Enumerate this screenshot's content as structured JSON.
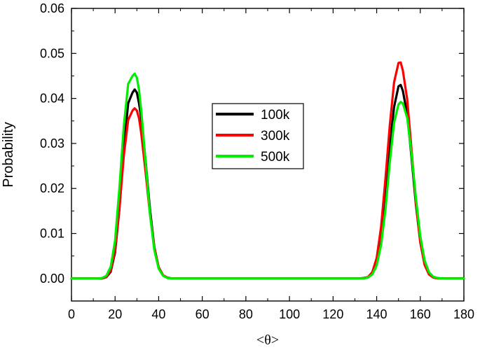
{
  "chart_data": {
    "type": "line",
    "title": "",
    "xlabel": "<θ>",
    "ylabel": "Probability",
    "xlim": [
      0,
      180
    ],
    "ylim": [
      -0.005,
      0.06
    ],
    "xticks": [
      0,
      20,
      40,
      60,
      80,
      100,
      120,
      140,
      160,
      180
    ],
    "yticks": [
      0.0,
      0.01,
      0.02,
      0.03,
      0.04,
      0.05,
      0.06
    ],
    "ytick_labels": [
      "0.00",
      "0.01",
      "0.02",
      "0.03",
      "0.04",
      "0.05",
      "0.06"
    ],
    "grid": false,
    "legend_position": "center",
    "x": [
      0,
      5,
      10,
      12,
      14,
      16,
      18,
      20,
      22,
      24,
      26,
      28,
      29,
      30,
      31,
      32,
      34,
      36,
      38,
      40,
      42,
      44,
      46,
      48,
      50,
      60,
      70,
      80,
      90,
      100,
      110,
      120,
      130,
      132,
      134,
      136,
      138,
      140,
      142,
      144,
      146,
      148,
      150,
      151,
      152,
      154,
      156,
      158,
      160,
      162,
      164,
      166,
      168,
      170,
      175,
      180
    ],
    "series": [
      {
        "name": "100k",
        "color": "#000000",
        "values": [
          0,
          0,
          0,
          0,
          0,
          0.0003,
          0.0015,
          0.0058,
          0.0154,
          0.0288,
          0.0389,
          0.0413,
          0.042,
          0.0413,
          0.0389,
          0.0356,
          0.0261,
          0.0154,
          0.007,
          0.0025,
          0.0007,
          0.0002,
          0,
          0,
          0,
          0,
          0,
          0,
          0,
          0,
          0,
          0,
          0,
          0,
          0.0001,
          0.0003,
          0.0013,
          0.0041,
          0.0099,
          0.0189,
          0.0294,
          0.0381,
          0.0427,
          0.043,
          0.0417,
          0.0365,
          0.0269,
          0.0163,
          0.0081,
          0.0032,
          0.001,
          0.0003,
          0.0001,
          0,
          0,
          0
        ]
      },
      {
        "name": "300k",
        "color": "#ff0000",
        "values": [
          0,
          0,
          0,
          0,
          0,
          0.0004,
          0.0018,
          0.0063,
          0.0155,
          0.0273,
          0.0352,
          0.0373,
          0.0378,
          0.0373,
          0.0356,
          0.0322,
          0.0236,
          0.0143,
          0.0068,
          0.0025,
          0.0007,
          0.0002,
          0,
          0,
          0,
          0,
          0,
          0,
          0,
          0,
          0,
          0,
          0,
          0,
          0.0001,
          0.0003,
          0.0014,
          0.0046,
          0.0114,
          0.022,
          0.0339,
          0.0436,
          0.0479,
          0.048,
          0.0462,
          0.0398,
          0.0286,
          0.0168,
          0.008,
          0.003,
          0.0009,
          0.0002,
          0,
          0,
          0,
          0
        ]
      },
      {
        "name": "500k",
        "color": "#00ee00",
        "values": [
          0,
          0,
          0,
          0,
          0.0001,
          0.0006,
          0.0026,
          0.0084,
          0.0201,
          0.0339,
          0.0432,
          0.045,
          0.0455,
          0.0446,
          0.0419,
          0.0373,
          0.0258,
          0.0143,
          0.0063,
          0.0022,
          0.0006,
          0.0001,
          0,
          0,
          0,
          0,
          0,
          0,
          0,
          0,
          0,
          0,
          0,
          0,
          0,
          0.0002,
          0.0009,
          0.0029,
          0.0074,
          0.0152,
          0.0257,
          0.0346,
          0.0387,
          0.0392,
          0.0389,
          0.0357,
          0.0277,
          0.0178,
          0.0094,
          0.004,
          0.0014,
          0.0004,
          0.0001,
          0,
          0,
          0
        ]
      }
    ]
  }
}
